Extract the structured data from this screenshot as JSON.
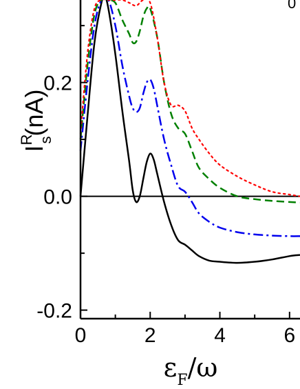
{
  "chart_data": {
    "type": "line",
    "xlabel": {
      "main": "ε",
      "sub": "F",
      "rest": "/ω"
    },
    "ylabel": {
      "main": "I",
      "sup": "R",
      "sub": "s",
      "rest": "(nA)"
    },
    "xlim": [
      0,
      6.3
    ],
    "ylim": [
      -0.215,
      0.345
    ],
    "x_ticks": [
      {
        "value": 0,
        "label": "0"
      },
      {
        "value": 2,
        "label": "2"
      },
      {
        "value": 4,
        "label": "4"
      },
      {
        "value": 6,
        "label": "6"
      }
    ],
    "y_ticks": [
      {
        "value": -0.2,
        "label": "-0.2"
      },
      {
        "value": 0.0,
        "label": "0.0"
      },
      {
        "value": 0.2,
        "label": "0.2"
      }
    ],
    "zero_line": true,
    "corner_fragment": "0",
    "series": [
      {
        "style": "solid",
        "color": "#000000",
        "x": [
          0,
          0.2,
          0.4,
          0.6,
          0.7,
          0.8,
          1.0,
          1.2,
          1.4,
          1.5,
          1.6,
          1.7,
          1.8,
          1.9,
          2.0,
          2.1,
          2.2,
          2.4,
          2.6,
          2.8,
          3.0,
          3.2,
          3.4,
          3.7,
          4.0,
          4.5,
          5.0,
          5.5,
          6.0,
          6.3
        ],
        "y": [
          0,
          0.14,
          0.27,
          0.34,
          0.35,
          0.33,
          0.25,
          0.15,
          0.06,
          0.01,
          -0.01,
          0.0,
          0.03,
          0.06,
          0.075,
          0.065,
          0.04,
          -0.01,
          -0.05,
          -0.077,
          -0.085,
          -0.095,
          -0.105,
          -0.113,
          -0.115,
          -0.117,
          -0.115,
          -0.111,
          -0.105,
          -0.103
        ]
      },
      {
        "style": "dashdot",
        "color": "#0000ee",
        "x": [
          0,
          0.2,
          0.4,
          0.6,
          0.8,
          1.0,
          1.2,
          1.4,
          1.5,
          1.6,
          1.7,
          1.8,
          1.9,
          2.0,
          2.1,
          2.2,
          2.4,
          2.6,
          2.8,
          3.0,
          3.2,
          3.4,
          3.7,
          4.0,
          4.5,
          5.0,
          5.5,
          6.0,
          6.3
        ],
        "y": [
          0.08,
          0.2,
          0.3,
          0.345,
          0.345,
          0.3,
          0.23,
          0.175,
          0.155,
          0.148,
          0.155,
          0.18,
          0.2,
          0.205,
          0.19,
          0.16,
          0.1,
          0.055,
          0.018,
          0.008,
          -0.01,
          -0.03,
          -0.045,
          -0.055,
          -0.063,
          -0.067,
          -0.069,
          -0.07,
          -0.07
        ]
      },
      {
        "style": "dashed",
        "color": "#008000",
        "x": [
          0,
          0.2,
          0.4,
          0.6,
          0.8,
          1.0,
          1.2,
          1.4,
          1.5,
          1.6,
          1.7,
          1.8,
          1.9,
          2.0,
          2.2,
          2.4,
          2.6,
          2.8,
          3.0,
          3.2,
          3.4,
          3.7,
          4.0,
          4.5,
          5.0,
          5.5,
          6.0,
          6.3
        ],
        "y": [
          0.1,
          0.23,
          0.32,
          0.345,
          0.345,
          0.34,
          0.31,
          0.285,
          0.27,
          0.272,
          0.29,
          0.315,
          0.33,
          0.33,
          0.28,
          0.2,
          0.145,
          0.12,
          0.11,
          0.08,
          0.05,
          0.03,
          0.015,
          0.0,
          -0.005,
          -0.008,
          -0.01,
          -0.011
        ]
      },
      {
        "style": "dotted",
        "color": "#ff0000",
        "x": [
          0,
          0.2,
          0.4,
          0.6,
          0.8,
          1.0,
          1.2,
          1.4,
          1.6,
          1.8,
          2.0,
          2.2,
          2.4,
          2.6,
          2.8,
          3.0,
          3.2,
          3.4,
          3.7,
          4.0,
          4.5,
          5.0,
          5.5,
          6.0,
          6.3
        ],
        "y": [
          0.11,
          0.25,
          0.33,
          0.345,
          0.345,
          0.345,
          0.345,
          0.34,
          0.335,
          0.345,
          0.34,
          0.28,
          0.2,
          0.16,
          0.16,
          0.15,
          0.12,
          0.1,
          0.075,
          0.055,
          0.035,
          0.02,
          0.008,
          0.003,
          0.0
        ]
      }
    ]
  }
}
